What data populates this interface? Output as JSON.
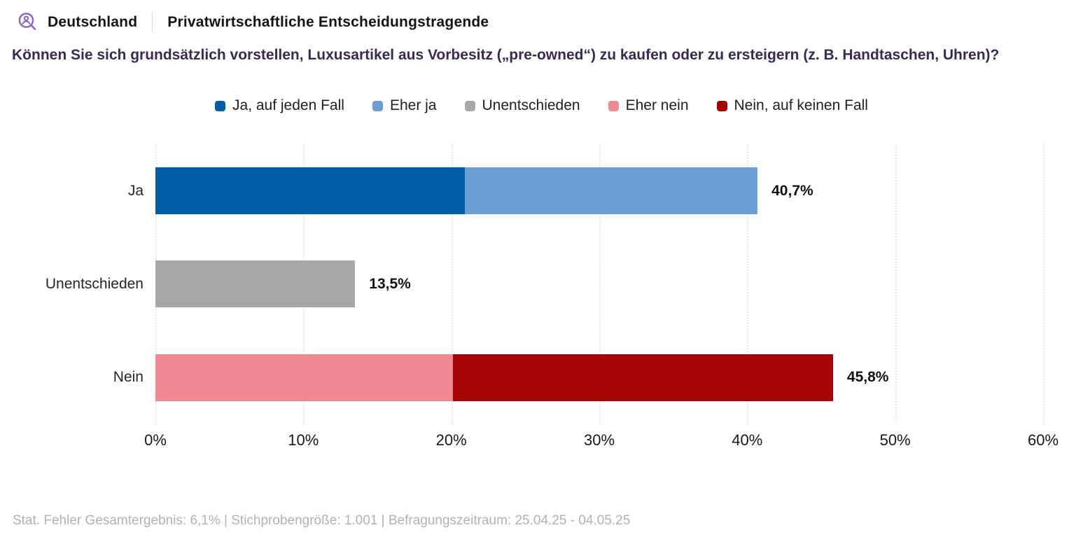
{
  "header": {
    "region": "Deutschland",
    "audience": "Privatwirtschaftliche Entscheidungstragende",
    "logo_color": "#8a62c4"
  },
  "question": "Können Sie sich grundsätzlich vorstellen, Luxusartikel aus Vorbesitz („pre-owned“) zu kaufen oder zu ersteigern (z. B. Handtaschen, Uhren)?",
  "chart_data": {
    "type": "bar",
    "orientation": "horizontal",
    "stacked": true,
    "grid": "dotted-vertical",
    "legend_position": "top-center",
    "xlim": [
      0,
      60
    ],
    "x_ticks": [
      {
        "value": 0,
        "label": "0%"
      },
      {
        "value": 10,
        "label": "10%"
      },
      {
        "value": 20,
        "label": "20%"
      },
      {
        "value": 30,
        "label": "30%"
      },
      {
        "value": 40,
        "label": "40%"
      },
      {
        "value": 50,
        "label": "50%"
      },
      {
        "value": 60,
        "label": "60%"
      }
    ],
    "categories": [
      "Ja",
      "Unentschieden",
      "Nein"
    ],
    "series": [
      {
        "name": "Ja, auf jeden Fall",
        "color": "#005ea8",
        "values": [
          20.9,
          0,
          0
        ]
      },
      {
        "name": "Eher ja",
        "color": "#6d9ed4",
        "values": [
          19.8,
          0,
          0
        ]
      },
      {
        "name": "Unentschieden",
        "color": "#a8a8a8",
        "values": [
          0,
          13.5,
          0
        ]
      },
      {
        "name": "Eher nein",
        "color": "#f08a92",
        "values": [
          0,
          0,
          20.1
        ]
      },
      {
        "name": "Nein, auf keinen Fall",
        "color": "#a30303",
        "values": [
          0,
          0,
          25.7
        ]
      }
    ],
    "totals": [
      40.7,
      13.5,
      45.8
    ],
    "total_labels": [
      "40,7%",
      "13,5%",
      "45,8%"
    ]
  },
  "footer": {
    "text": "Stat. Fehler Gesamtergebnis: 6,1% | Stichprobengröße: 1.001 | Befragungszeitraum: 25.04.25 - 04.05.25"
  }
}
